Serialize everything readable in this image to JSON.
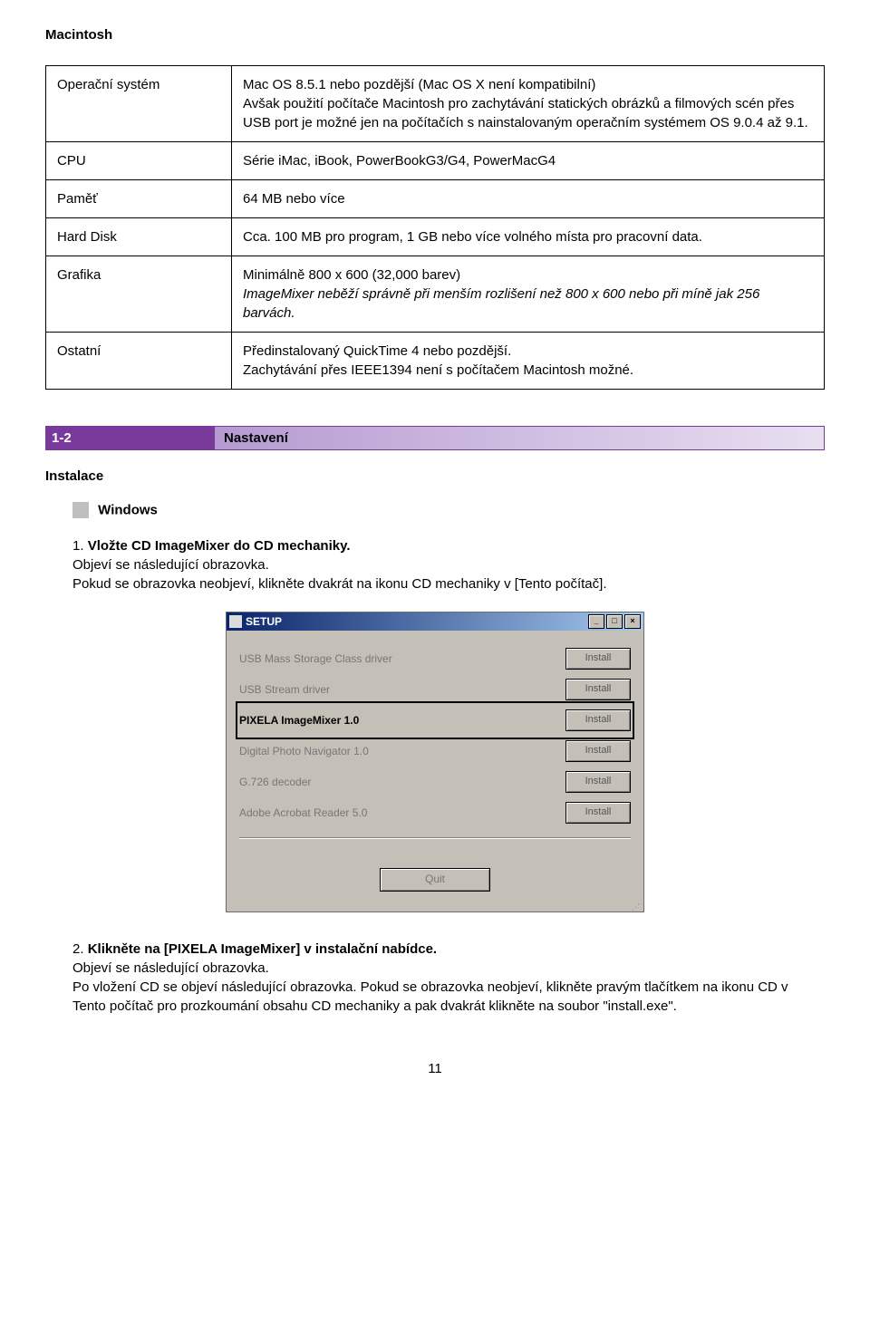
{
  "pageTitle": "Macintosh",
  "specTable": {
    "rows": [
      {
        "label": "Operační systém",
        "value": "Mac OS 8.5.1 nebo pozdější (Mac OS X není kompatibilní)\nAvšak použití počítače Macintosh pro zachytávání statických obrázků a filmových scén přes USB port je možné jen na počítačích s nainstalovaným operačním systémem OS 9.0.4 až 9.1."
      },
      {
        "label": "CPU",
        "value": "Série iMac, iBook, PowerBookG3/G4, PowerMacG4"
      },
      {
        "label": "Paměť",
        "value": "64 MB nebo více"
      },
      {
        "label": "Hard Disk",
        "value": "Cca. 100 MB pro program, 1 GB nebo více volného místa pro pracovní data."
      },
      {
        "label": "Grafika",
        "value": "Minimálně 800 x 600 (32,000 barev)\nImageMixer neběží správně při menším rozlišení než 800 x 600 nebo při míně jak 256 barvách.",
        "italicPart": "ImageMixer neběží správně při menším rozlišení než 800 x 600 nebo při míně jak 256 barvách."
      },
      {
        "label": "Ostatní",
        "value": "Předinstalovaný QuickTime 4 nebo pozdější.\nZachytávání přes IEEE1394 není s počítačem Macintosh možné."
      }
    ]
  },
  "section": {
    "num": "1-2",
    "title": "Nastavení"
  },
  "subheading": "Instalace",
  "osLabel": "Windows",
  "step1": {
    "num": "1.",
    "bold": "Vložte CD ImageMixer do CD mechaniky.",
    "text": "Objeví se následující obrazovka.\nPokud se obrazovka neobjeví, klikněte dvakrát na ikonu CD mechaniky v [Tento počítač]."
  },
  "setup": {
    "windowTitle": "SETUP",
    "items": [
      {
        "label": "USB Mass Storage Class driver",
        "selected": false
      },
      {
        "label": "USB Stream driver",
        "selected": false
      },
      {
        "label": "PIXELA ImageMixer 1.0",
        "selected": true
      },
      {
        "label": "Digital Photo Navigator 1.0",
        "selected": false
      },
      {
        "label": "G.726 decoder",
        "selected": false
      },
      {
        "label": "Adobe Acrobat Reader 5.0",
        "selected": false
      }
    ],
    "installLabel": "Install",
    "quitLabel": "Quit"
  },
  "step2": {
    "num": "2.",
    "bold": "Klikněte na [PIXELA ImageMixer] v instalační nabídce.",
    "text": "Objeví se následující obrazovka.\nPo vložení CD se objeví následující obrazovka. Pokud se obrazovka neobjeví, klikněte pravým tlačítkem na ikonu CD v Tento počítač pro prozkoumání obsahu CD mechaniky a pak dvakrát klikněte na soubor \"install.exe\"."
  },
  "pageNumber": "11"
}
